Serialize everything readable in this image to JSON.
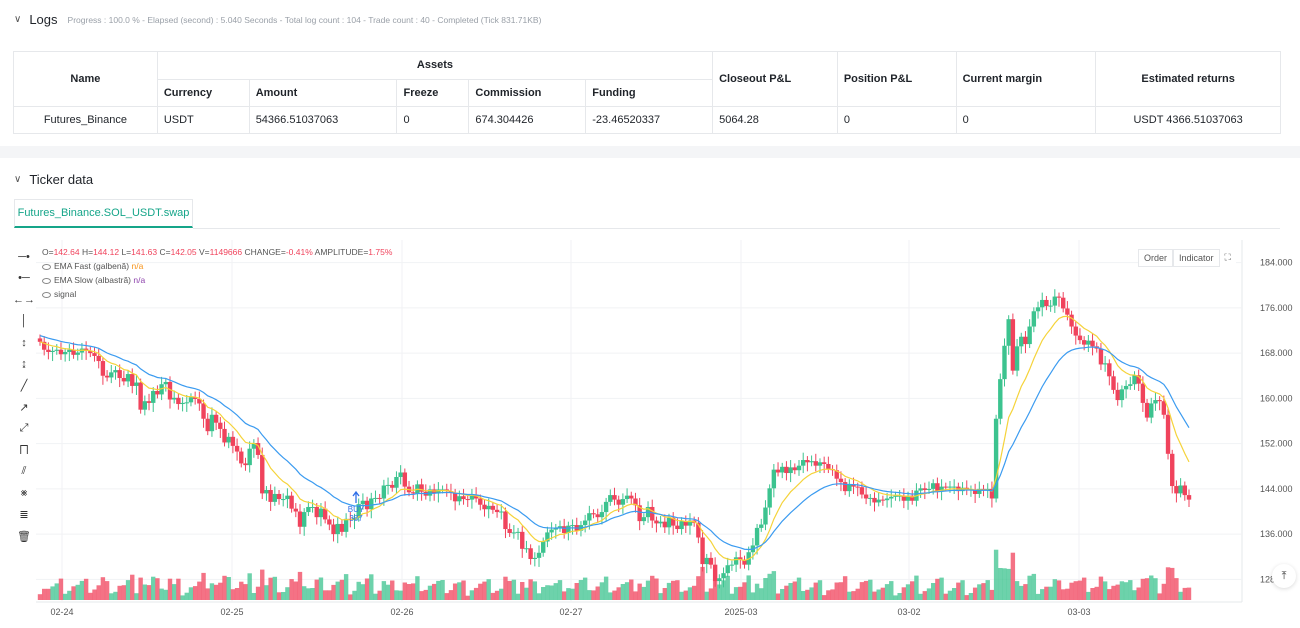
{
  "logs": {
    "title": "Logs",
    "meta": "Progress : 100.0 % - Elapsed (second) : 5.040  Seconds - Total log count : 104 - Trade count : 40 - Completed (Tick 831.71KB)",
    "table": {
      "group_header": "Assets",
      "headers": {
        "name": "Name",
        "currency": "Currency",
        "amount": "Amount",
        "freeze": "Freeze",
        "commission": "Commission",
        "funding": "Funding",
        "closeout": "Closeout P&L",
        "position": "Position P&L",
        "margin": "Current margin",
        "returns": "Estimated returns"
      },
      "row": {
        "name": "Futures_Binance",
        "currency": "USDT",
        "amount": "54366.51037063",
        "freeze": "0",
        "commission": "674.304426",
        "funding": "-23.46520337",
        "closeout": "5064.28",
        "position": "0",
        "margin": "0",
        "returns": "USDT 4366.51037063"
      }
    }
  },
  "ticker": {
    "title": "Ticker data",
    "tab": "Futures_Binance.SOL_USDT.swap",
    "buttons": {
      "order": "Order",
      "indicator": "Indicator"
    },
    "ohlc": {
      "o_label": "O=",
      "o": "142.64",
      "h_label": "H=",
      "h": "144.12",
      "l_label": "L=",
      "l": "141.63",
      "c_label": "C=",
      "c": "142.05",
      "v_label": "V=",
      "v": "1149666",
      "chg_label": "CHANGE=",
      "chg": "-0.41%",
      "amp_label": "AMPLITUDE=",
      "amp": "1.75%"
    },
    "legend": [
      {
        "name": "EMA Fast (galbenă)",
        "value": "n/a"
      },
      {
        "name": "EMA Slow (albastră)",
        "value": "n/a"
      },
      {
        "name": "signal",
        "value": ""
      }
    ]
  },
  "chart_data": {
    "type": "candlestick",
    "y_ticks": [
      "184.000",
      "176.000",
      "168.000",
      "160.000",
      "152.000",
      "144.000",
      "136.000",
      "128.000"
    ],
    "ylim": [
      124,
      188
    ],
    "x_ticks": [
      "02-24",
      "02-25",
      "02-26",
      "02-27",
      "2025-03",
      "03-02",
      "03-03"
    ],
    "annotation": {
      "text": "BUY",
      "value": "387"
    },
    "colors": {
      "up": "#3cc38f",
      "down": "#f0435c",
      "ema_fast": "#f5d33a",
      "ema_slow": "#3b9bf0"
    },
    "closes": [
      170,
      168.6,
      168.2,
      168.4,
      168.6,
      167.8,
      168.2,
      168.6,
      167.7,
      168.1,
      168.8,
      168.4,
      168,
      167.5,
      166.6,
      164,
      163.7,
      164.6,
      165,
      163.6,
      163,
      164.3,
      162.2,
      162.8,
      158,
      159.5,
      159.2,
      161.3,
      160.7,
      162.5,
      162.9,
      159.8,
      160.1,
      159,
      159.2,
      159.3,
      160.2,
      159.9,
      159.1,
      156.4,
      154.2,
      157.1,
      155.7,
      154.6,
      152.2,
      153.2,
      151.6,
      150.6,
      148.5,
      148.2,
      151.1,
      152.1,
      150,
      143.2,
      143.8,
      141.7,
      143.1,
      142.2,
      142.2,
      142.8,
      140.5,
      140,
      137.3,
      139.9,
      140.8,
      140.8,
      139,
      140.5,
      138.6,
      137.7,
      136,
      137.8,
      136.4,
      138.7,
      138.5,
      138.9,
      141.3,
      141.9,
      140.4,
      142.3,
      142.4,
      142.3,
      144.6,
      144.7,
      144.2,
      146.1,
      146.9,
      144.4,
      143.4,
      143.2,
      144.8,
      143.5,
      142.8,
      143.9,
      143.2,
      143.9,
      143.9,
      143.6,
      143.3,
      141.8,
      142.7,
      142.2,
      142.1,
      143,
      142.3,
      141.2,
      140.4,
      141,
      140.3,
      139.9,
      140,
      136.9,
      136.2,
      136.3,
      136.4,
      133.4,
      133.5,
      131.6,
      131.8,
      132.7,
      134.7,
      136.3,
      136.8,
      137.1,
      137.4,
      136.2,
      137.5,
      137.6,
      136.6,
      137.6,
      138.4,
      139.7,
      139.5,
      139,
      139.9,
      141.7,
      142.9,
      142.1,
      141.2,
      142.2,
      142.8,
      142.3,
      141.1,
      138.3,
      139,
      140.8,
      138.4,
      137.9,
      138.2,
      137.2,
      138.9,
      137.5,
      136.9,
      138.3,
      137.5,
      138.4,
      138,
      135.4,
      130.7,
      131.8,
      130.6,
      127.7,
      128.2,
      129.1,
      130.5,
      130.6,
      131.9,
      131.5,
      130.6,
      132.8,
      134,
      137.1,
      137.7,
      140.7,
      144.1,
      147.4,
      146.9,
      147.9,
      146.8,
      147.8,
      147.3,
      148.1,
      149.1,
      148.7,
      148.9,
      148.1,
      148.7,
      148.4,
      147.5,
      147.3,
      145.8,
      145.2,
      143.6,
      144.7,
      144.4,
      144.3,
      143,
      142.3,
      142.4,
      141.6,
      142.1,
      142,
      142.3,
      142.6,
      142.8,
      142.8,
      141.9,
      142.8,
      141.9,
      143.7,
      144.1,
      143.8,
      144,
      145,
      143.6,
      144.4,
      144.3,
      144.4,
      144.4,
      143.6,
      144.2,
      143.9,
      143.9,
      143.1,
      144,
      143.7,
      144,
      142.3,
      156.4,
      163.4,
      169.3,
      174,
      164.9,
      169.2,
      170.9,
      169.6,
      172.7,
      175.4,
      176.1,
      177.4,
      176.3,
      176.4,
      178,
      177.8,
      175.9,
      174.8,
      172.7,
      171.1,
      170.3,
      169.5,
      170.2,
      169.2,
      168.8,
      166,
      166.2,
      163.9,
      161.5,
      159.7,
      161.6,
      162.2,
      162.5,
      164.1,
      162.6,
      159.2,
      156.6,
      159.1,
      159.7,
      159.5,
      157.1,
      150.2,
      144.5,
      143.2,
      144.6,
      142.9,
      142.1
    ]
  }
}
